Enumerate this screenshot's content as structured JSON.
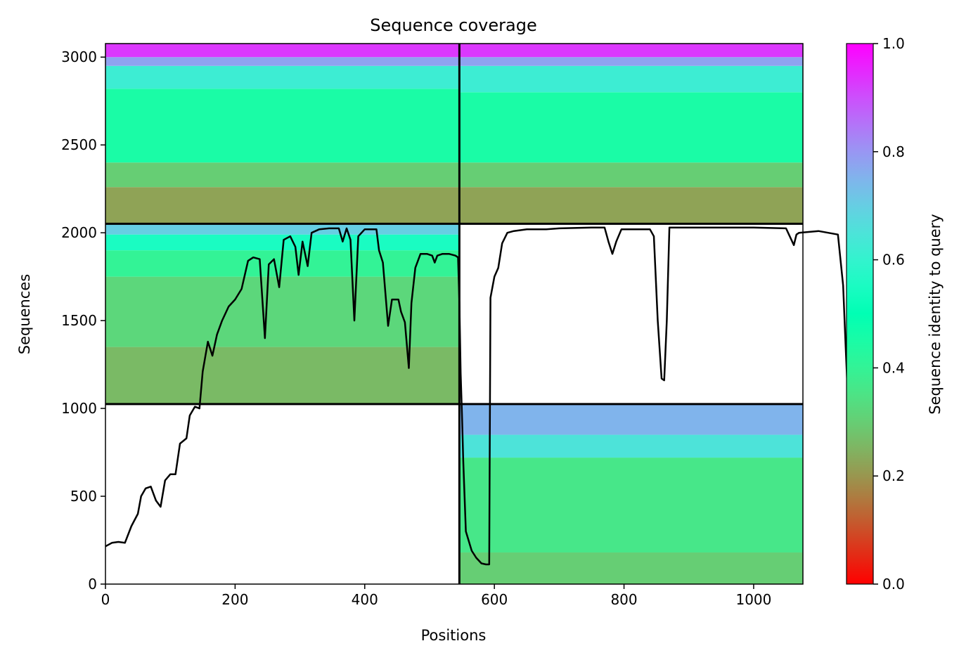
{
  "chart_data": {
    "type": "heatmap",
    "title": "Sequence coverage",
    "xlabel": "Positions",
    "ylabel": "Sequences",
    "xlim": [
      0,
      1076
    ],
    "ylim": [
      0,
      3077
    ],
    "x_ticks": [
      0,
      200,
      400,
      600,
      800,
      1000
    ],
    "y_ticks": [
      0,
      500,
      1000,
      1500,
      2000,
      2500,
      3000
    ],
    "block_boundaries": {
      "x": 546,
      "y": [
        1025,
        2051
      ]
    },
    "colorbar": {
      "label": "Sequence identity to query",
      "colormap": "rainbow_r",
      "range": [
        0,
        1
      ],
      "ticks": [
        "0.0",
        "0.2",
        "0.4",
        "0.6",
        "0.8",
        "1.0"
      ]
    },
    "blocks": [
      {
        "name": "top-left",
        "x_range": [
          0,
          546
        ],
        "y_range": [
          2051,
          3077
        ],
        "identity_bands": [
          {
            "y_from": 2051,
            "y_to": 2260,
            "identity": 0.22
          },
          {
            "y_from": 2260,
            "y_to": 2400,
            "identity": 0.3
          },
          {
            "y_from": 2400,
            "y_to": 2820,
            "identity": 0.45
          },
          {
            "y_from": 2820,
            "y_to": 2950,
            "identity": 0.62
          },
          {
            "y_from": 2950,
            "y_to": 3000,
            "identity": 0.78
          },
          {
            "y_from": 3000,
            "y_to": 3077,
            "identity": 0.93
          }
        ]
      },
      {
        "name": "top-right",
        "x_range": [
          546,
          1076
        ],
        "y_range": [
          2051,
          3077
        ],
        "identity_bands": [
          {
            "y_from": 2051,
            "y_to": 2260,
            "identity": 0.22
          },
          {
            "y_from": 2260,
            "y_to": 2400,
            "identity": 0.3
          },
          {
            "y_from": 2400,
            "y_to": 2800,
            "identity": 0.45
          },
          {
            "y_from": 2800,
            "y_to": 2950,
            "identity": 0.62
          },
          {
            "y_from": 2950,
            "y_to": 3000,
            "identity": 0.78
          },
          {
            "y_from": 3000,
            "y_to": 3077,
            "identity": 0.93
          }
        ]
      },
      {
        "name": "middle-left",
        "x_range": [
          0,
          546
        ],
        "y_range": [
          1025,
          2051
        ],
        "identity_bands": [
          {
            "y_from": 1025,
            "y_to": 1350,
            "identity": 0.26
          },
          {
            "y_from": 1350,
            "y_to": 1750,
            "identity": 0.32
          },
          {
            "y_from": 1750,
            "y_to": 1900,
            "identity": 0.4
          },
          {
            "y_from": 1900,
            "y_to": 1990,
            "identity": 0.55
          },
          {
            "y_from": 1990,
            "y_to": 2051,
            "identity": 0.7
          }
        ]
      },
      {
        "name": "bottom-right",
        "x_range": [
          546,
          1076
        ],
        "y_range": [
          0,
          1025
        ],
        "identity_bands": [
          {
            "y_from": 0,
            "y_to": 180,
            "identity": 0.3
          },
          {
            "y_from": 180,
            "y_to": 720,
            "identity": 0.36
          },
          {
            "y_from": 720,
            "y_to": 850,
            "identity": 0.65
          },
          {
            "y_from": 850,
            "y_to": 1025,
            "identity": 0.75
          }
        ]
      }
    ],
    "coverage_line": {
      "color": "#000000",
      "points": [
        [
          0,
          215
        ],
        [
          10,
          235
        ],
        [
          20,
          240
        ],
        [
          30,
          235
        ],
        [
          40,
          330
        ],
        [
          50,
          400
        ],
        [
          55,
          500
        ],
        [
          62,
          545
        ],
        [
          70,
          555
        ],
        [
          78,
          475
        ],
        [
          85,
          440
        ],
        [
          92,
          590
        ],
        [
          100,
          625
        ],
        [
          108,
          625
        ],
        [
          115,
          800
        ],
        [
          125,
          830
        ],
        [
          130,
          960
        ],
        [
          138,
          1010
        ],
        [
          145,
          1000
        ],
        [
          150,
          1210
        ],
        [
          158,
          1380
        ],
        [
          165,
          1300
        ],
        [
          172,
          1420
        ],
        [
          180,
          1500
        ],
        [
          190,
          1580
        ],
        [
          200,
          1620
        ],
        [
          210,
          1680
        ],
        [
          220,
          1840
        ],
        [
          228,
          1860
        ],
        [
          238,
          1850
        ],
        [
          246,
          1400
        ],
        [
          252,
          1820
        ],
        [
          260,
          1850
        ],
        [
          268,
          1690
        ],
        [
          275,
          1960
        ],
        [
          285,
          1980
        ],
        [
          293,
          1920
        ],
        [
          298,
          1760
        ],
        [
          304,
          1950
        ],
        [
          312,
          1810
        ],
        [
          318,
          2000
        ],
        [
          330,
          2020
        ],
        [
          345,
          2025
        ],
        [
          360,
          2025
        ],
        [
          366,
          1950
        ],
        [
          372,
          2025
        ],
        [
          378,
          1960
        ],
        [
          384,
          1500
        ],
        [
          390,
          1980
        ],
        [
          400,
          2020
        ],
        [
          418,
          2020
        ],
        [
          422,
          1900
        ],
        [
          428,
          1830
        ],
        [
          436,
          1470
        ],
        [
          442,
          1620
        ],
        [
          452,
          1620
        ],
        [
          456,
          1550
        ],
        [
          462,
          1490
        ],
        [
          468,
          1230
        ],
        [
          472,
          1600
        ],
        [
          478,
          1800
        ],
        [
          486,
          1880
        ],
        [
          496,
          1880
        ],
        [
          504,
          1870
        ],
        [
          508,
          1830
        ],
        [
          512,
          1870
        ],
        [
          520,
          1880
        ],
        [
          530,
          1880
        ],
        [
          540,
          1870
        ],
        [
          544,
          1860
        ],
        [
          546,
          1600
        ],
        [
          548,
          1200
        ],
        [
          550,
          960
        ],
        [
          552,
          700
        ],
        [
          556,
          300
        ],
        [
          565,
          190
        ],
        [
          572,
          150
        ],
        [
          580,
          118
        ],
        [
          587,
          112
        ],
        [
          592,
          112
        ],
        [
          594,
          1630
        ],
        [
          600,
          1750
        ],
        [
          606,
          1800
        ],
        [
          612,
          1940
        ],
        [
          620,
          2000
        ],
        [
          630,
          2010
        ],
        [
          650,
          2020
        ],
        [
          680,
          2020
        ],
        [
          700,
          2025
        ],
        [
          750,
          2030
        ],
        [
          770,
          2030
        ],
        [
          776,
          1950
        ],
        [
          782,
          1880
        ],
        [
          788,
          1950
        ],
        [
          796,
          2020
        ],
        [
          820,
          2020
        ],
        [
          840,
          2020
        ],
        [
          846,
          1980
        ],
        [
          852,
          1500
        ],
        [
          858,
          1170
        ],
        [
          862,
          1160
        ],
        [
          866,
          1500
        ],
        [
          870,
          2030
        ],
        [
          900,
          2030
        ],
        [
          950,
          2030
        ],
        [
          1000,
          2030
        ],
        [
          1050,
          2025
        ],
        [
          1062,
          1930
        ],
        [
          1066,
          1990
        ],
        [
          1070,
          2000
        ],
        [
          1100,
          2010
        ],
        [
          1130,
          1990
        ],
        [
          1138,
          1700
        ],
        [
          1142,
          1350
        ],
        [
          1146,
          1010
        ],
        [
          1150,
          940
        ]
      ]
    }
  }
}
